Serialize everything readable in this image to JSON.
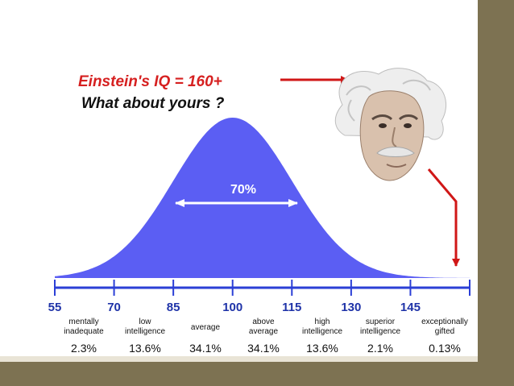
{
  "slide": {
    "colors": {
      "frame": "#7d7252",
      "band": "#e9e4d6",
      "curve": "#5b5ef3",
      "axis": "#2b3fd6",
      "tick_text": "#1f33a8",
      "title_red": "#d62020",
      "arrow_red": "#d01717"
    }
  },
  "portrait": {
    "icon": "einstein-portrait-icon"
  },
  "chart_data": {
    "type": "area",
    "title_line_1": "Einstein's IQ = 160+",
    "title_line_2": "What about yours ?",
    "annotation": "70%",
    "x_ticks": [
      55,
      70,
      85,
      100,
      115,
      130,
      145
    ],
    "xlim": [
      55,
      160
    ],
    "curve": {
      "mean": 100,
      "sd": 15
    },
    "categories": [
      {
        "line1": "mentally",
        "line2": "inadequate",
        "percent": "2.3%"
      },
      {
        "line1": "low",
        "line2": "intelligence",
        "percent": "13.6%"
      },
      {
        "line1": "average",
        "line2": "",
        "percent": "34.1%"
      },
      {
        "line1": "above",
        "line2": "average",
        "percent": "34.1%"
      },
      {
        "line1": "high",
        "line2": "intelligence",
        "percent": "13.6%"
      },
      {
        "line1": "superior",
        "line2": "intelligence",
        "percent": "2.1%"
      },
      {
        "line1": "exceptionally",
        "line2": "gifted",
        "percent": "0.13%"
      }
    ]
  }
}
